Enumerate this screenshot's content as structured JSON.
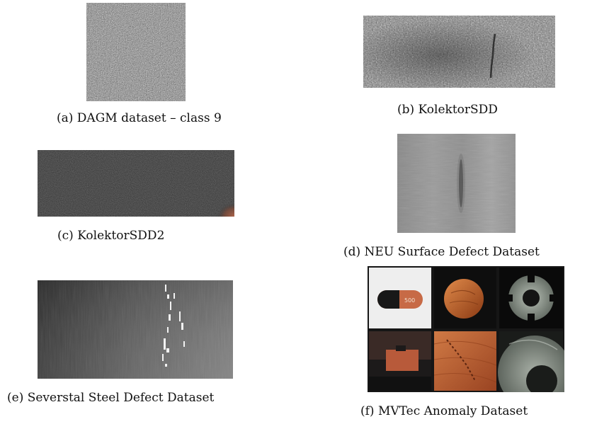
{
  "figure": {
    "panels": [
      {
        "id": "a",
        "caption": "(a) DAGM dataset – class 9"
      },
      {
        "id": "b",
        "caption": "(b) KolektorSDD"
      },
      {
        "id": "c",
        "caption": "(c) KolektorSDD2"
      },
      {
        "id": "d",
        "caption": "(d) NEU Surface Defect Dataset"
      },
      {
        "id": "e",
        "caption": "(e) Severstal Steel Defect Dataset"
      },
      {
        "id": "f",
        "caption": "(f) MVTec Anomaly Dataset"
      }
    ],
    "mvtec_pill_text": "500"
  }
}
